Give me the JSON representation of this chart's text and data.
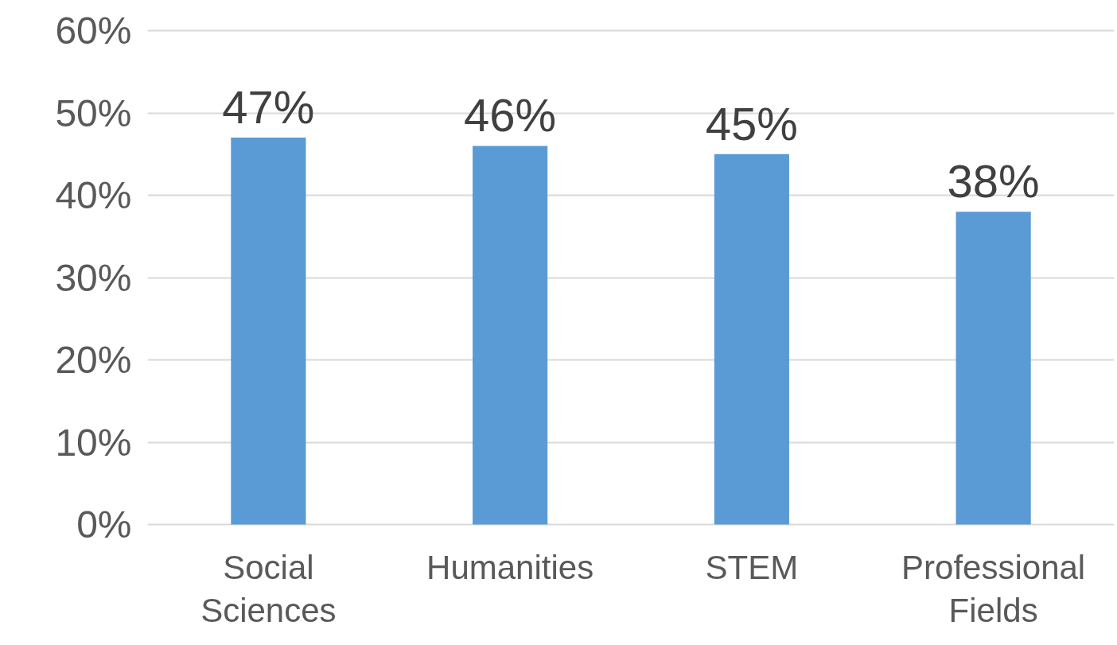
{
  "chart_data": {
    "type": "bar",
    "categories": [
      "Social Sciences",
      "Humanities",
      "STEM",
      "Professional Fields"
    ],
    "values": [
      47,
      46,
      45,
      38
    ],
    "color": "#5b9bd5",
    "value_labels": [
      "47%",
      "46%",
      "45%",
      "38%"
    ],
    "ylim": [
      0,
      60
    ],
    "yticks": [
      {
        "value": 0,
        "label": "0%"
      },
      {
        "value": 10,
        "label": "10%"
      },
      {
        "value": 20,
        "label": "20%"
      },
      {
        "value": 30,
        "label": "30%"
      },
      {
        "value": 40,
        "label": "40%"
      },
      {
        "value": 50,
        "label": "50%"
      },
      {
        "value": 60,
        "label": "60%"
      }
    ],
    "grid": "y"
  }
}
